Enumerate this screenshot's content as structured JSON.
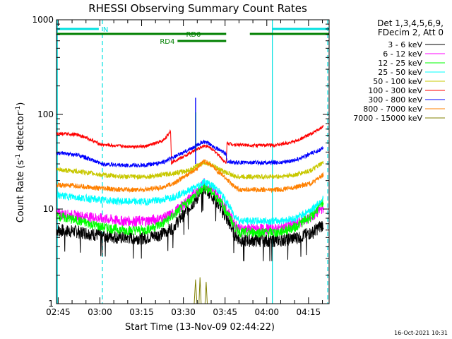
{
  "chart_data": {
    "type": "line",
    "title": "RHESSI Observing Summary Count Rates",
    "xlabel": "Start Time (13-Nov-09 02:44:22)",
    "ylabel_main": "Count Rate (s",
    "ylabel_exp": "-1",
    "ylabel_mid": " detector",
    "ylabel_end": ")",
    "yscale": "log",
    "ylim": [
      1,
      1000
    ],
    "xlim_minutes": [
      0,
      98
    ],
    "xticks": [
      {
        "label": "02:45",
        "min": 0.6
      },
      {
        "label": "03:00",
        "min": 15.6
      },
      {
        "label": "03:15",
        "min": 30.6
      },
      {
        "label": "03:30",
        "min": 45.6
      },
      {
        "label": "03:45",
        "min": 60.6
      },
      {
        "label": "04:00",
        "min": 75.6
      },
      {
        "label": "04:15",
        "min": 90.6
      }
    ],
    "yticks": [
      {
        "label": "1",
        "value": 1
      },
      {
        "label": "10",
        "value": 10
      },
      {
        "label": "100",
        "value": 100
      },
      {
        "label": "1000",
        "value": 1000
      }
    ],
    "legend_header": [
      "Det 1,3,4,5,6,9,",
      "FDecim 2, Att 0"
    ],
    "series": [
      {
        "name": "3 - 6 keV",
        "color": "#000000",
        "points": [
          [
            0,
            6
          ],
          [
            8,
            5.8
          ],
          [
            16,
            5.3
          ],
          [
            24,
            5
          ],
          [
            32,
            5
          ],
          [
            38,
            5.5
          ],
          [
            42,
            6.5
          ],
          [
            46,
            9
          ],
          [
            50,
            12.5
          ],
          [
            52,
            15
          ],
          [
            53,
            17
          ],
          [
            55,
            15
          ],
          [
            58,
            11.5
          ],
          [
            61,
            8
          ],
          [
            64,
            5.5
          ],
          [
            66,
            4.7
          ],
          [
            72,
            4.7
          ],
          [
            80,
            4.7
          ],
          [
            86,
            5
          ],
          [
            92,
            5.7
          ],
          [
            96,
            7
          ]
        ]
      },
      {
        "name": "6 - 12 keV",
        "color": "#ff00ff",
        "points": [
          [
            0,
            9
          ],
          [
            8,
            8.5
          ],
          [
            16,
            8
          ],
          [
            24,
            7.5
          ],
          [
            32,
            7.5
          ],
          [
            38,
            8
          ],
          [
            42,
            9
          ],
          [
            46,
            11.5
          ],
          [
            50,
            15
          ],
          [
            52,
            17
          ],
          [
            53,
            19
          ],
          [
            55,
            17
          ],
          [
            58,
            14
          ],
          [
            61,
            10
          ],
          [
            64,
            7
          ],
          [
            66,
            6.2
          ],
          [
            72,
            6.2
          ],
          [
            80,
            6.2
          ],
          [
            86,
            7
          ],
          [
            92,
            8.3
          ],
          [
            96,
            10.5
          ]
        ]
      },
      {
        "name": "12 - 25 keV",
        "color": "#00ff00",
        "points": [
          [
            0,
            8.5
          ],
          [
            8,
            7.5
          ],
          [
            16,
            6.5
          ],
          [
            24,
            6
          ],
          [
            32,
            6
          ],
          [
            38,
            7
          ],
          [
            42,
            8.5
          ],
          [
            46,
            11
          ],
          [
            50,
            14
          ],
          [
            52,
            16
          ],
          [
            53,
            17.5
          ],
          [
            55,
            16
          ],
          [
            58,
            13
          ],
          [
            61,
            9.5
          ],
          [
            64,
            6.5
          ],
          [
            66,
            5.7
          ],
          [
            72,
            5.7
          ],
          [
            80,
            5.7
          ],
          [
            86,
            6.5
          ],
          [
            92,
            8.5
          ],
          [
            96,
            12
          ]
        ]
      },
      {
        "name": "25 - 50 keV",
        "color": "#00ffff",
        "points": [
          [
            0,
            14
          ],
          [
            8,
            13.3
          ],
          [
            16,
            12.5
          ],
          [
            24,
            12
          ],
          [
            32,
            12
          ],
          [
            38,
            12.5
          ],
          [
            42,
            13.5
          ],
          [
            46,
            15
          ],
          [
            50,
            17
          ],
          [
            52,
            18.5
          ],
          [
            53,
            19.5
          ],
          [
            55,
            18.5
          ],
          [
            58,
            16
          ],
          [
            61,
            12
          ],
          [
            64,
            8.5
          ],
          [
            66,
            7.5
          ],
          [
            72,
            7.5
          ],
          [
            80,
            7.5
          ],
          [
            86,
            8
          ],
          [
            92,
            10
          ],
          [
            96,
            13
          ]
        ]
      },
      {
        "name": "50 - 100 keV",
        "color": "#c8c800",
        "points": [
          [
            0,
            26
          ],
          [
            8,
            25
          ],
          [
            16,
            23
          ],
          [
            24,
            22
          ],
          [
            32,
            22
          ],
          [
            38,
            23
          ],
          [
            42,
            24
          ],
          [
            46,
            25
          ],
          [
            48,
            26
          ],
          [
            50,
            28
          ],
          [
            52,
            30
          ],
          [
            53,
            31
          ],
          [
            55,
            30
          ],
          [
            58,
            27
          ],
          [
            61,
            24
          ],
          [
            62,
            24
          ],
          [
            64,
            22
          ],
          [
            72,
            22
          ],
          [
            80,
            22
          ],
          [
            86,
            23
          ],
          [
            92,
            26
          ],
          [
            96,
            31
          ]
        ]
      },
      {
        "name": "100 - 300 keV",
        "color": "#ff0000",
        "points": [
          [
            0,
            63
          ],
          [
            8,
            61
          ],
          [
            16,
            48
          ],
          [
            24,
            46
          ],
          [
            32,
            46
          ],
          [
            38,
            52
          ],
          [
            40,
            60
          ],
          [
            41,
            68
          ],
          [
            41.3,
            31
          ],
          [
            43,
            33
          ],
          [
            46,
            36
          ],
          [
            50,
            42
          ],
          [
            52,
            45
          ],
          [
            53,
            47
          ],
          [
            55,
            45
          ],
          [
            58,
            38
          ],
          [
            61,
            30
          ],
          [
            61.3,
            50
          ],
          [
            64,
            48
          ],
          [
            72,
            47
          ],
          [
            80,
            48
          ],
          [
            86,
            52
          ],
          [
            92,
            63
          ],
          [
            96,
            75
          ]
        ]
      },
      {
        "name": "300 - 800 keV",
        "color": "#0000ff",
        "points": [
          [
            0,
            39
          ],
          [
            8,
            37
          ],
          [
            16,
            30
          ],
          [
            24,
            29
          ],
          [
            32,
            29
          ],
          [
            38,
            31
          ],
          [
            42,
            35
          ],
          [
            46,
            40
          ],
          [
            50,
            46
          ],
          [
            52,
            50
          ],
          [
            53,
            51
          ],
          [
            55,
            49
          ],
          [
            58,
            43
          ],
          [
            61,
            38
          ],
          [
            61.3,
            32
          ],
          [
            64,
            31
          ],
          [
            72,
            31
          ],
          [
            80,
            31
          ],
          [
            86,
            33
          ],
          [
            92,
            39
          ],
          [
            96,
            44
          ]
        ]
      },
      {
        "name": "800 - 7000 keV",
        "color": "#ff8000",
        "points": [
          [
            0,
            18
          ],
          [
            8,
            17.5
          ],
          [
            16,
            16.5
          ],
          [
            24,
            16
          ],
          [
            32,
            16
          ],
          [
            38,
            17
          ],
          [
            42,
            18.5
          ],
          [
            46,
            22
          ],
          [
            50,
            26
          ],
          [
            52,
            30
          ],
          [
            53,
            32
          ],
          [
            55,
            30
          ],
          [
            58,
            25
          ],
          [
            61,
            21
          ],
          [
            64,
            17
          ],
          [
            66,
            16
          ],
          [
            72,
            16
          ],
          [
            80,
            16
          ],
          [
            86,
            17
          ],
          [
            92,
            19
          ],
          [
            96,
            23
          ]
        ]
      },
      {
        "name": "7000 - 15000 keV",
        "color": "#808000",
        "points": [
          [
            49.5,
            1
          ],
          [
            50,
            1.8
          ],
          [
            50.5,
            1
          ],
          [
            51.2,
            1
          ],
          [
            51.6,
            1.9
          ],
          [
            52,
            1
          ],
          [
            53.4,
            1
          ],
          [
            53.8,
            1.7
          ],
          [
            54.2,
            1
          ]
        ]
      }
    ],
    "markers": [
      {
        "label": "N",
        "color": "#00e0e0",
        "y_factor": 1.2,
        "segments": [
          [
            0.2,
            15.2
          ],
          [
            77.6,
            98
          ]
        ]
      },
      {
        "label": "RD0",
        "color": "#008000",
        "y_factor": 1.0,
        "segments": [
          [
            0.2,
            61
          ],
          [
            69.5,
            98
          ]
        ]
      },
      {
        "label": "RD4",
        "color": "#008000",
        "y_factor": 0.84,
        "segments": [
          [
            43.5,
            61
          ]
        ]
      }
    ],
    "vertical_lines": [
      {
        "min": 0.3,
        "color": "#00e0e0",
        "dashed": false
      },
      {
        "min": 16.5,
        "color": "#00e0e0",
        "dashed": true
      },
      {
        "min": 77.6,
        "color": "#00e0e0",
        "dashed": false
      },
      {
        "min": 97.5,
        "color": "#00e0e0",
        "dashed": true
      }
    ],
    "spike": {
      "min": 50.0,
      "peak": 150
    },
    "footer_date": "16-Oct-2021 10:31"
  }
}
